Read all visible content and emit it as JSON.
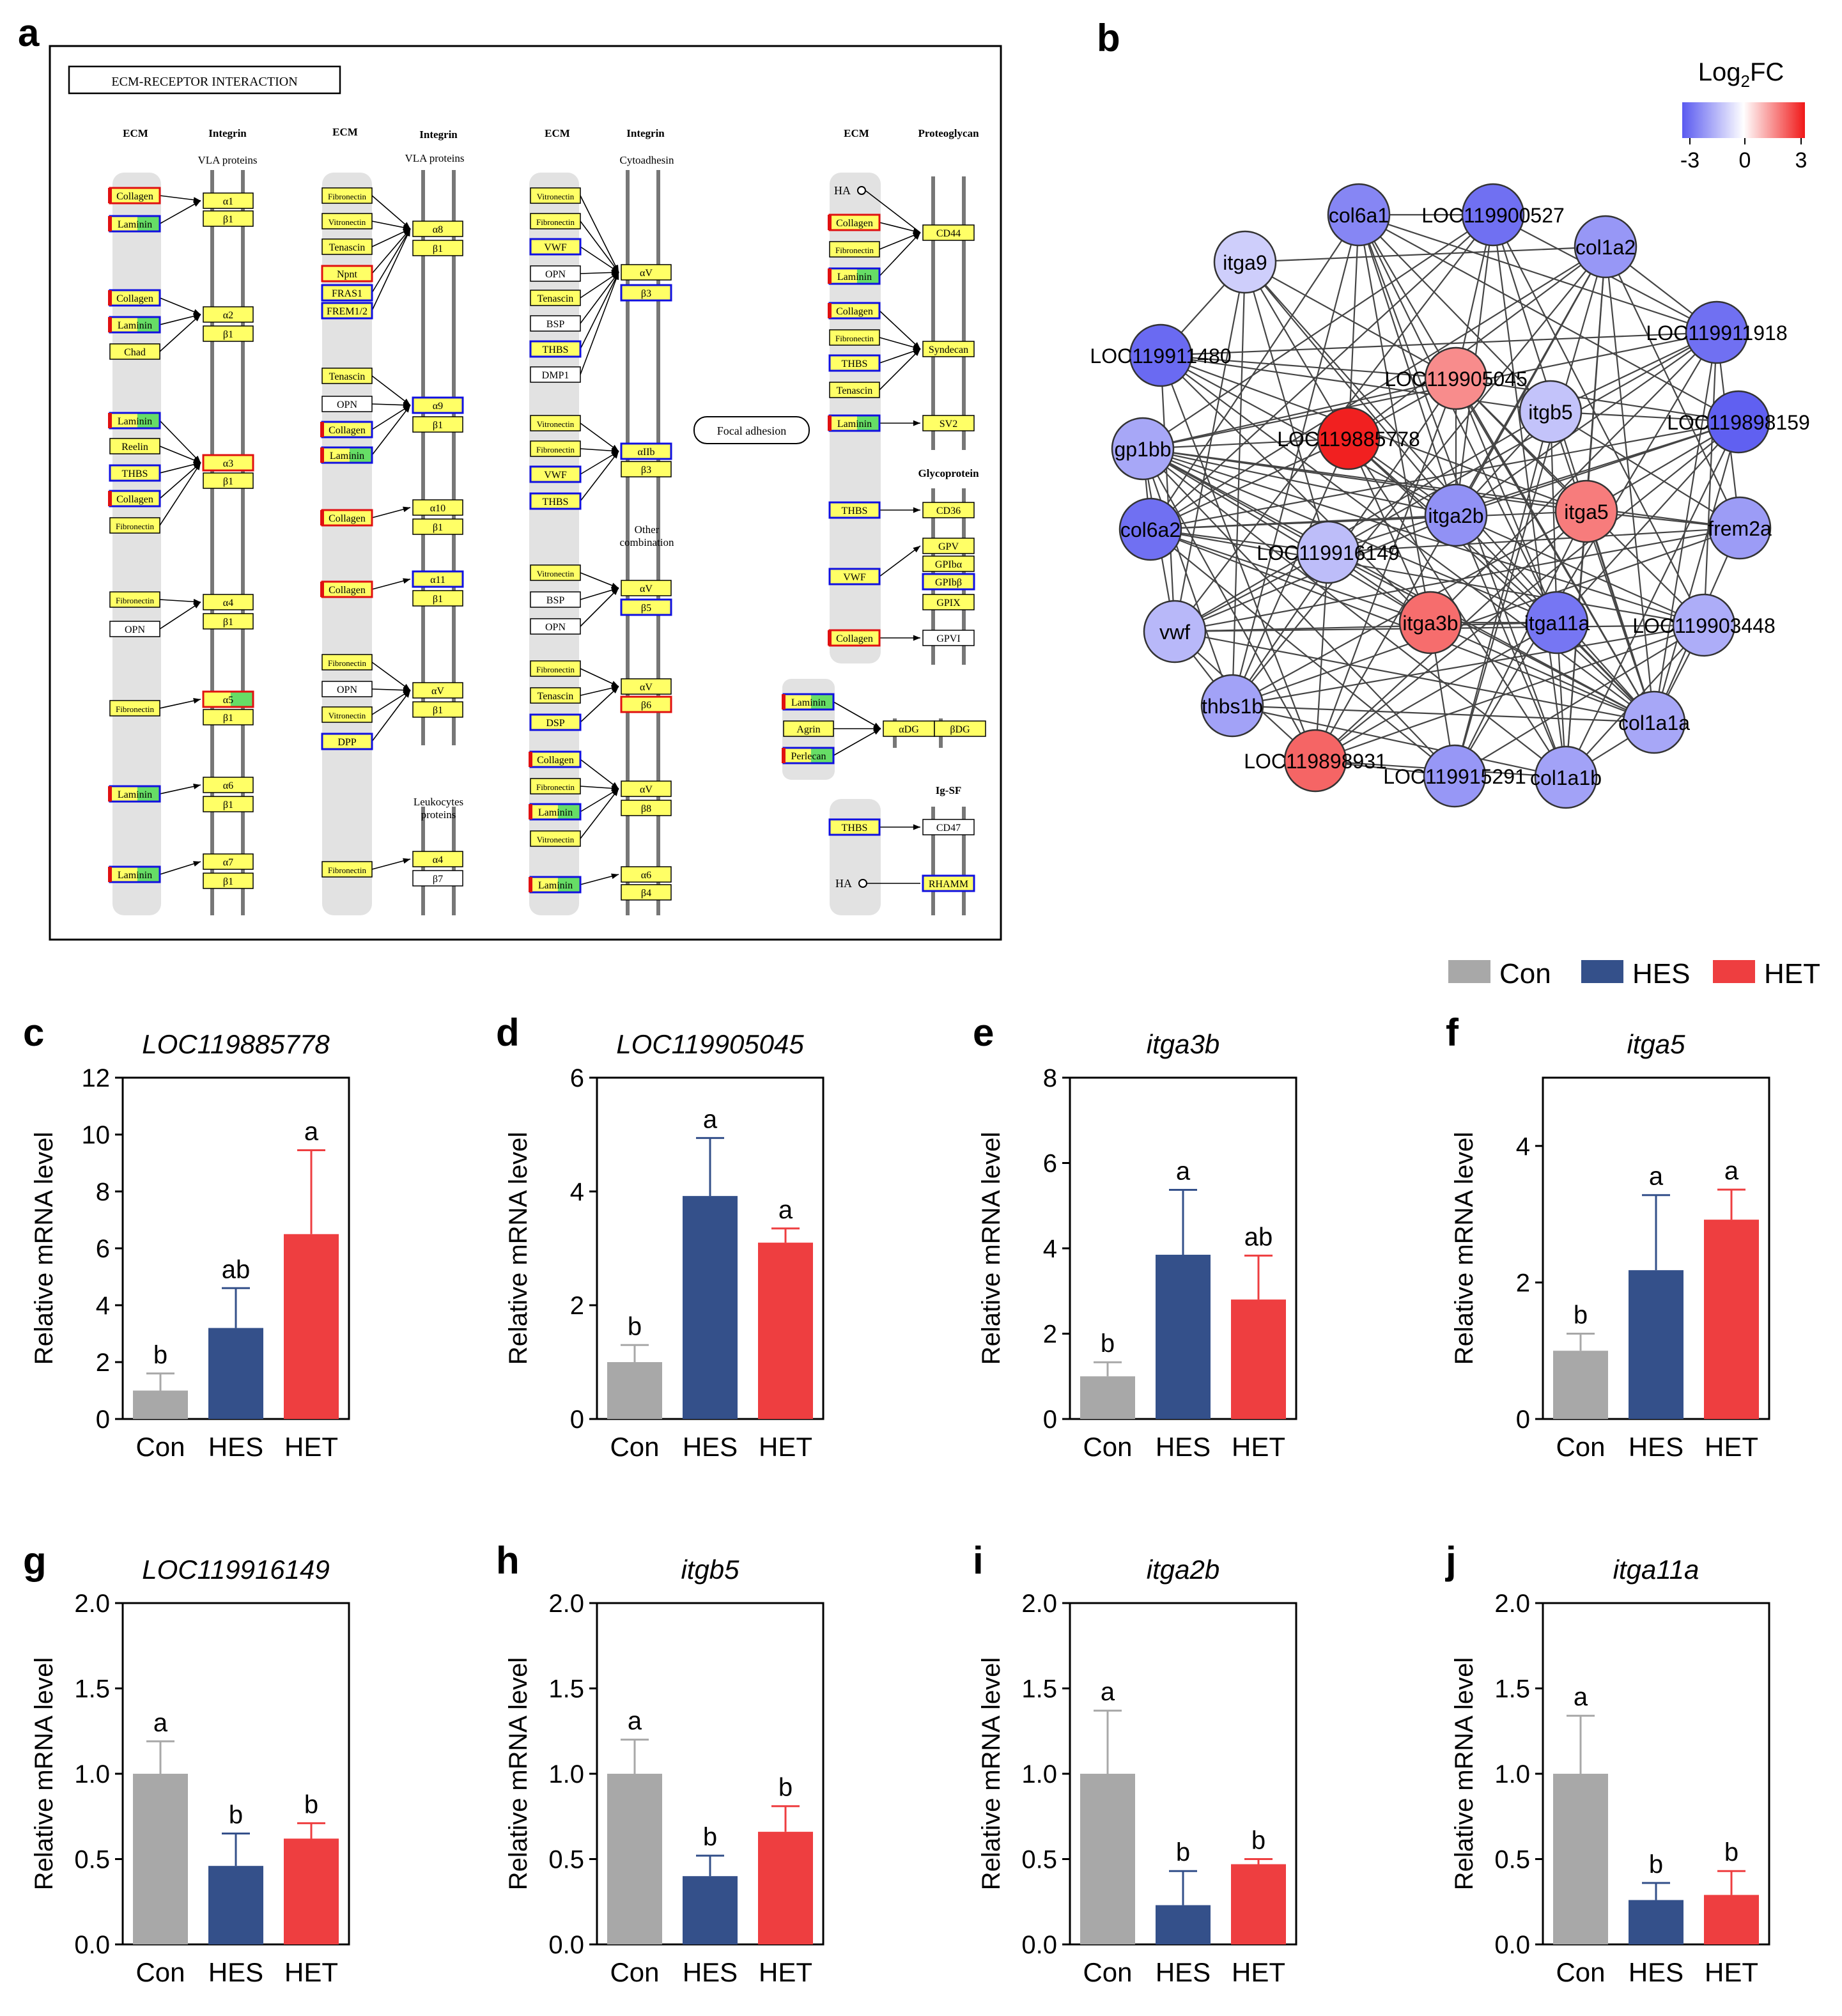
{
  "panel_labels": [
    "a",
    "b",
    "c",
    "d",
    "e",
    "f",
    "g",
    "h",
    "i",
    "j"
  ],
  "kegg": {
    "title": "ECM-RECEPTOR INTERACTION",
    "focal": "Focal adhesion",
    "headers": [
      {
        "text": "ECM"
      },
      {
        "text": "Integrin"
      },
      {
        "text": "VLA proteins"
      },
      {
        "text": "ECM"
      },
      {
        "text": "Integrin"
      },
      {
        "text": "VLA proteins"
      },
      {
        "text": "ECM"
      },
      {
        "text": "Integrin"
      },
      {
        "text": "Cytoadhesin"
      },
      {
        "text": "ECM"
      },
      {
        "text": "Proteoglycan"
      },
      {
        "text": "Glycoprotein"
      },
      {
        "text": "Other combination"
      },
      {
        "text": "Leukocytes proteins"
      },
      {
        "text": "Ig-SF"
      },
      {
        "text": "HA"
      },
      {
        "text": "HA"
      }
    ],
    "ligands": [
      {
        "label": "Collagen",
        "style": "ry"
      },
      {
        "label": "Laminin",
        "style": "rbg"
      },
      {
        "label": "Collagen",
        "style": "rb"
      },
      {
        "label": "Laminin",
        "style": "rbg"
      },
      {
        "label": "Chad",
        "style": "y"
      },
      {
        "label": "Laminin",
        "style": "rbg"
      },
      {
        "label": "Reelin",
        "style": "y"
      },
      {
        "label": "THBS",
        "style": "b"
      },
      {
        "label": "Collagen",
        "style": "rb"
      },
      {
        "label": "Fibronectin",
        "style": "y"
      },
      {
        "label": "Fibronectin",
        "style": "y"
      },
      {
        "label": "OPN",
        "style": "w"
      },
      {
        "label": "Fibronectin",
        "style": "y"
      },
      {
        "label": "Laminin",
        "style": "rbg"
      },
      {
        "label": "Laminin",
        "style": "rbg"
      },
      {
        "label": "Fibronectin",
        "style": "y"
      },
      {
        "label": "Vitronectin",
        "style": "y"
      },
      {
        "label": "Tenascin",
        "style": "y"
      },
      {
        "label": "Npnt",
        "style": "r"
      },
      {
        "label": "FRAS1",
        "style": "b"
      },
      {
        "label": "FREM1/2",
        "style": "b"
      },
      {
        "label": "Tenascin",
        "style": "y"
      },
      {
        "label": "OPN",
        "style": "w"
      },
      {
        "label": "Collagen",
        "style": "rb"
      },
      {
        "label": "Laminin",
        "style": "rbg"
      },
      {
        "label": "Collagen",
        "style": "ry"
      },
      {
        "label": "Collagen",
        "style": "ry"
      },
      {
        "label": "Fibronectin",
        "style": "y"
      },
      {
        "label": "OPN",
        "style": "w"
      },
      {
        "label": "Vitronectin",
        "style": "y"
      },
      {
        "label": "DPP",
        "style": "b"
      },
      {
        "label": "Fibronectin",
        "style": "y"
      },
      {
        "label": "Vitronectin",
        "style": "y"
      },
      {
        "label": "Fibronectin",
        "style": "y"
      },
      {
        "label": "VWF",
        "style": "b"
      },
      {
        "label": "OPN",
        "style": "w"
      },
      {
        "label": "Tenascin",
        "style": "y"
      },
      {
        "label": "BSP",
        "style": "w"
      },
      {
        "label": "THBS",
        "style": "b"
      },
      {
        "label": "DMP1",
        "style": "w"
      },
      {
        "label": "Vitronectin",
        "style": "y"
      },
      {
        "label": "Fibronectin",
        "style": "y"
      },
      {
        "label": "VWF",
        "style": "b"
      },
      {
        "label": "THBS",
        "style": "b"
      },
      {
        "label": "Vitronectin",
        "style": "y"
      },
      {
        "label": "BSP",
        "style": "w"
      },
      {
        "label": "OPN",
        "style": "w"
      },
      {
        "label": "Fibronectin",
        "style": "y"
      },
      {
        "label": "Tenascin",
        "style": "y"
      },
      {
        "label": "DSP",
        "style": "b"
      },
      {
        "label": "Collagen",
        "style": "rb"
      },
      {
        "label": "Fibronectin",
        "style": "y"
      },
      {
        "label": "Laminin",
        "style": "rbg"
      },
      {
        "label": "Vitronectin",
        "style": "y"
      },
      {
        "label": "Laminin",
        "style": "rbg"
      },
      {
        "label": "Collagen",
        "style": "ry"
      },
      {
        "label": "Fibronectin",
        "style": "y"
      },
      {
        "label": "Laminin",
        "style": "rbg"
      },
      {
        "label": "Collagen",
        "style": "rb"
      },
      {
        "label": "Fibronectin",
        "style": "y"
      },
      {
        "label": "THBS",
        "style": "b"
      },
      {
        "label": "Tenascin",
        "style": "y"
      },
      {
        "label": "Laminin",
        "style": "rbg"
      },
      {
        "label": "THBS",
        "style": "b"
      },
      {
        "label": "VWF",
        "style": "b"
      },
      {
        "label": "Collagen",
        "style": "ry"
      },
      {
        "label": "Laminin",
        "style": "rbg"
      },
      {
        "label": "Agrin",
        "style": "y"
      },
      {
        "label": "Perlecan",
        "style": "rbg"
      },
      {
        "label": "THBS",
        "style": "b"
      }
    ],
    "receptors": [
      {
        "label": "α1",
        "style": "y"
      },
      {
        "label": "β1",
        "style": "y"
      },
      {
        "label": "α2",
        "style": "y"
      },
      {
        "label": "β1",
        "style": "y"
      },
      {
        "label": "α3",
        "style": "r"
      },
      {
        "label": "β1",
        "style": "y"
      },
      {
        "label": "α4",
        "style": "y"
      },
      {
        "label": "β1",
        "style": "y"
      },
      {
        "label": "α5",
        "style": "rg"
      },
      {
        "label": "β1",
        "style": "y"
      },
      {
        "label": "α6",
        "style": "y"
      },
      {
        "label": "β1",
        "style": "y"
      },
      {
        "label": "α7",
        "style": "y"
      },
      {
        "label": "β1",
        "style": "y"
      },
      {
        "label": "α8",
        "style": "y"
      },
      {
        "label": "β1",
        "style": "y"
      },
      {
        "label": "α9",
        "style": "b"
      },
      {
        "label": "β1",
        "style": "y"
      },
      {
        "label": "α10",
        "style": "y"
      },
      {
        "label": "β1",
        "style": "y"
      },
      {
        "label": "α11",
        "style": "b"
      },
      {
        "label": "β1",
        "style": "y"
      },
      {
        "label": "αV",
        "style": "y"
      },
      {
        "label": "β1",
        "style": "y"
      },
      {
        "label": "α4",
        "style": "y"
      },
      {
        "label": "β7",
        "style": "w"
      },
      {
        "label": "αV",
        "style": "y"
      },
      {
        "label": "β3",
        "style": "b"
      },
      {
        "label": "αIIb",
        "style": "b"
      },
      {
        "label": "β3",
        "style": "y"
      },
      {
        "label": "αV",
        "style": "y"
      },
      {
        "label": "β5",
        "style": "b"
      },
      {
        "label": "αV",
        "style": "y"
      },
      {
        "label": "β6",
        "style": "r"
      },
      {
        "label": "αV",
        "style": "y"
      },
      {
        "label": "β8",
        "style": "y"
      },
      {
        "label": "α6",
        "style": "y"
      },
      {
        "label": "β4",
        "style": "y"
      },
      {
        "label": "CD44",
        "style": "y"
      },
      {
        "label": "Syndecan",
        "style": "y"
      },
      {
        "label": "SV2",
        "style": "y"
      },
      {
        "label": "CD36",
        "style": "y"
      },
      {
        "label": "GPV",
        "style": "y"
      },
      {
        "label": "GPIbα",
        "style": "y"
      },
      {
        "label": "GPIbβ",
        "style": "b"
      },
      {
        "label": "GPIX",
        "style": "y"
      },
      {
        "label": "GPVI",
        "style": "w"
      },
      {
        "label": "αDG",
        "style": "y"
      },
      {
        "label": "βDG",
        "style": "y"
      },
      {
        "label": "CD47",
        "style": "w"
      },
      {
        "label": "RHAMM",
        "style": "b"
      }
    ]
  },
  "network": {
    "legend": {
      "title_main": "Log",
      "title_sub": "2",
      "title_suffix": "FC",
      "ticks": [
        "-3",
        "0",
        "3"
      ],
      "min": -3,
      "max": 3
    },
    "nodes": [
      {
        "label": "col6a1",
        "fc": -2.2
      },
      {
        "label": "LOC119900527",
        "fc": -2.6
      },
      {
        "label": "col1a2",
        "fc": -1.9
      },
      {
        "label": "itga9",
        "fc": -0.9
      },
      {
        "label": "LOC119911918",
        "fc": -2.6
      },
      {
        "label": "LOC119911480",
        "fc": -2.7
      },
      {
        "label": "LOC119905045",
        "fc": 1.5
      },
      {
        "label": "itgb5",
        "fc": -1.1
      },
      {
        "label": "LOC119898159",
        "fc": -2.9
      },
      {
        "label": "gp1bb",
        "fc": -1.6
      },
      {
        "label": "LOC119885778",
        "fc": 2.9
      },
      {
        "label": "itga2b",
        "fc": -2.0
      },
      {
        "label": "itga5",
        "fc": 1.7
      },
      {
        "label": "frem2a",
        "fc": -1.8
      },
      {
        "label": "col6a2",
        "fc": -2.6
      },
      {
        "label": "LOC119916149",
        "fc": -1.2
      },
      {
        "label": "vwf",
        "fc": -1.3
      },
      {
        "label": "itga3b",
        "fc": 1.9
      },
      {
        "label": "itga11a",
        "fc": -2.5
      },
      {
        "label": "LOC119903448",
        "fc": -1.5
      },
      {
        "label": "thbs1b",
        "fc": -1.7
      },
      {
        "label": "col1a1a",
        "fc": -1.6
      },
      {
        "label": "LOC119898931",
        "fc": 2.0
      },
      {
        "label": "LOC119915291",
        "fc": -1.9
      },
      {
        "label": "col1a1b",
        "fc": -1.7
      }
    ]
  },
  "legend": {
    "groups": [
      {
        "name": "Con",
        "color": "#a8a8a8"
      },
      {
        "name": "HES",
        "color": "#34508a"
      },
      {
        "name": "HET",
        "color": "#ee3e40"
      }
    ]
  },
  "chart_data": [
    {
      "type": "bar",
      "panel": "c",
      "title": "LOC119885778",
      "ylabel": "Relative mRNA level",
      "xlabel": "",
      "categories": [
        "Con",
        "HES",
        "HET"
      ],
      "values": [
        1.0,
        3.2,
        6.5
      ],
      "errors": [
        0.6,
        1.4,
        2.95
      ],
      "letters": [
        "b",
        "ab",
        "a"
      ],
      "ylim": [
        0,
        12
      ],
      "yticks": [
        "0",
        "2",
        "4",
        "6",
        "8",
        "10",
        "12"
      ]
    },
    {
      "type": "bar",
      "panel": "d",
      "title": "LOC119905045",
      "ylabel": "Relative mRNA level",
      "xlabel": "",
      "categories": [
        "Con",
        "HES",
        "HET"
      ],
      "values": [
        1.0,
        3.92,
        3.1
      ],
      "errors": [
        0.3,
        1.02,
        0.25
      ],
      "letters": [
        "b",
        "a",
        "a"
      ],
      "ylim": [
        0,
        6
      ],
      "yticks": [
        "0",
        "2",
        "4",
        "6"
      ]
    },
    {
      "type": "bar",
      "panel": "e",
      "title": "itga3b",
      "ylabel": "Relative mRNA level",
      "xlabel": "",
      "categories": [
        "Con",
        "HES",
        "HET"
      ],
      "values": [
        1.0,
        3.85,
        2.8
      ],
      "errors": [
        0.33,
        1.52,
        1.03
      ],
      "letters": [
        "b",
        "a",
        "ab"
      ],
      "ylim": [
        0,
        8
      ],
      "yticks": [
        "0",
        "2",
        "4",
        "6",
        "8"
      ]
    },
    {
      "type": "bar",
      "panel": "f",
      "title": "itga5",
      "ylabel": "Relative mRNA level",
      "xlabel": "",
      "categories": [
        "Con",
        "HES",
        "HET"
      ],
      "values": [
        1.0,
        2.18,
        2.92
      ],
      "errors": [
        0.25,
        1.1,
        0.44
      ],
      "letters": [
        "b",
        "a",
        "a"
      ],
      "ylim": [
        0,
        5
      ],
      "yticks": [
        "0",
        "2",
        "4"
      ]
    },
    {
      "type": "bar",
      "panel": "g",
      "title": "LOC119916149",
      "ylabel": "Relative mRNA level",
      "xlabel": "",
      "categories": [
        "Con",
        "HES",
        "HET"
      ],
      "values": [
        1.0,
        0.46,
        0.62
      ],
      "errors": [
        0.19,
        0.19,
        0.09
      ],
      "letters": [
        "a",
        "b",
        "b"
      ],
      "ylim": [
        0,
        2
      ],
      "yticks": [
        "0.0",
        "0.5",
        "1.0",
        "1.5",
        "2.0"
      ]
    },
    {
      "type": "bar",
      "panel": "h",
      "title": "itgb5",
      "ylabel": "Relative mRNA level",
      "xlabel": "",
      "categories": [
        "Con",
        "HES",
        "HET"
      ],
      "values": [
        1.0,
        0.4,
        0.66
      ],
      "errors": [
        0.2,
        0.12,
        0.15
      ],
      "letters": [
        "a",
        "b",
        "b"
      ],
      "ylim": [
        0,
        2
      ],
      "yticks": [
        "0.0",
        "0.5",
        "1.0",
        "1.5",
        "2.0"
      ]
    },
    {
      "type": "bar",
      "panel": "i",
      "title": "itga2b",
      "ylabel": "Relative mRNA level",
      "xlabel": "",
      "categories": [
        "Con",
        "HES",
        "HET"
      ],
      "values": [
        1.0,
        0.23,
        0.47
      ],
      "errors": [
        0.37,
        0.2,
        0.03
      ],
      "letters": [
        "a",
        "b",
        "b"
      ],
      "ylim": [
        0,
        2
      ],
      "yticks": [
        "0.0",
        "0.5",
        "1.0",
        "1.5",
        "2.0"
      ]
    },
    {
      "type": "bar",
      "panel": "j",
      "title": "itga11a",
      "ylabel": "Relative mRNA level",
      "xlabel": "",
      "categories": [
        "Con",
        "HES",
        "HET"
      ],
      "values": [
        1.0,
        0.26,
        0.29
      ],
      "errors": [
        0.34,
        0.1,
        0.14
      ],
      "letters": [
        "a",
        "b",
        "b"
      ],
      "ylim": [
        0,
        2
      ],
      "yticks": [
        "0.0",
        "0.5",
        "1.0",
        "1.5",
        "2.0"
      ]
    }
  ]
}
